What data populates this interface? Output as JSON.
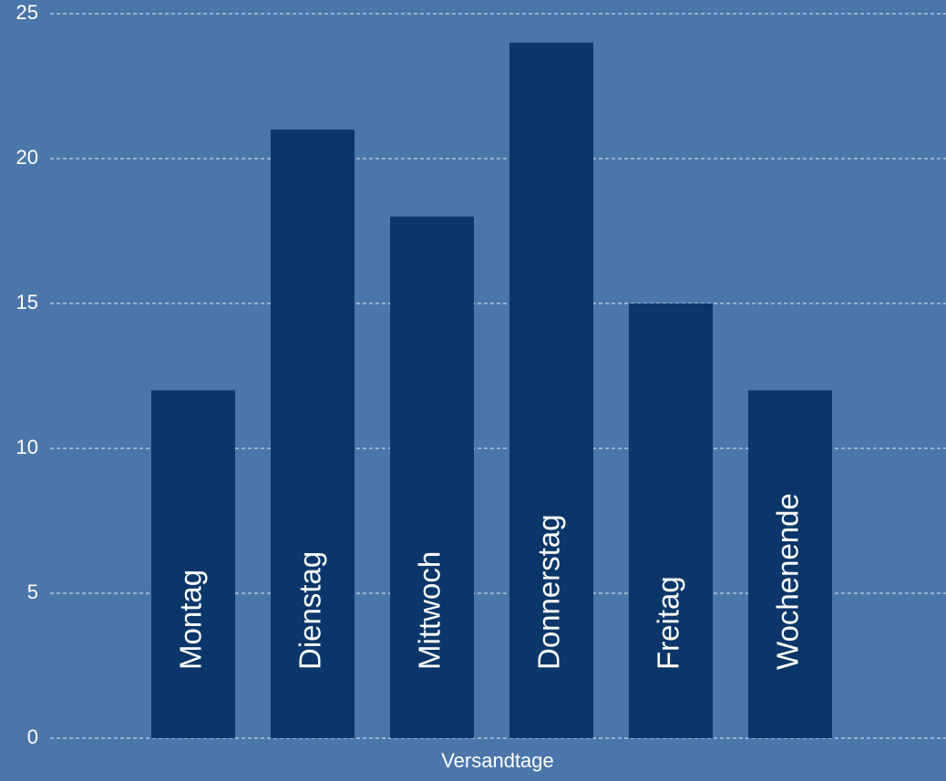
{
  "chart_data": {
    "type": "bar",
    "x_label": "Versandtage",
    "categories": [
      "Montag",
      "Dienstag",
      "Mittwoch",
      "Donnerstag",
      "Freitag",
      "Wochenende"
    ],
    "values": [
      12,
      21,
      18,
      24,
      15,
      12
    ],
    "color": "#0b3669",
    "ylim": [
      0,
      25
    ],
    "yticks": [
      0,
      5,
      10,
      15,
      20,
      25
    ],
    "grid": true
  }
}
